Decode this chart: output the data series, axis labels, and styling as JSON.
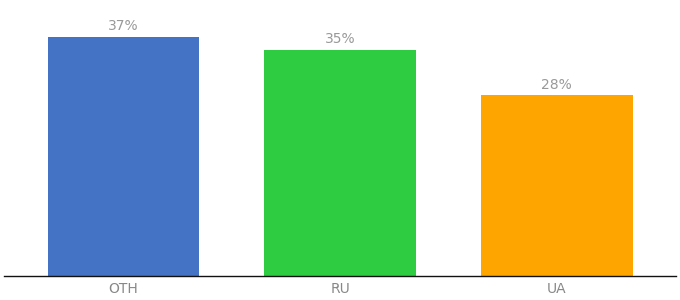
{
  "categories": [
    "OTH",
    "RU",
    "UA"
  ],
  "values": [
    37,
    35,
    28
  ],
  "bar_colors": [
    "#4472C4",
    "#2ECC40",
    "#FFA500"
  ],
  "label_texts": [
    "37%",
    "35%",
    "28%"
  ],
  "ylim": [
    0,
    42
  ],
  "bar_width": 0.7,
  "label_fontsize": 10,
  "tick_fontsize": 10,
  "label_color": "#999999",
  "tick_color": "#888888",
  "background_color": "#ffffff"
}
